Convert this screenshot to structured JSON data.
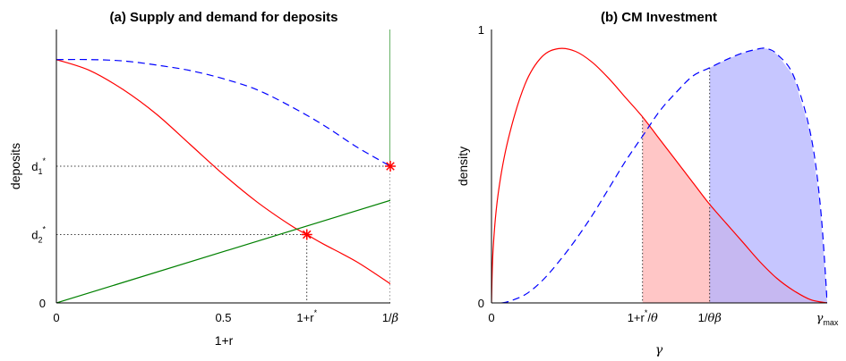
{
  "chart_data": [
    {
      "type": "line",
      "title": "(a) Supply and demand for deposits",
      "xlabel": "1+r",
      "ylabel": "deposits",
      "xlim": [
        0,
        1.0
      ],
      "ylim": [
        0,
        1.0
      ],
      "x_ticks": [
        {
          "x": 0,
          "label": "0"
        },
        {
          "x": 0.5,
          "label": "0.5"
        },
        {
          "x": 0.75,
          "label": "1+r",
          "sup": "*"
        },
        {
          "x": 1.0,
          "label": "1/",
          "greek": "β"
        }
      ],
      "y_ticks": [
        {
          "y": 0,
          "label": "0"
        },
        {
          "y": 0.25,
          "label": "d",
          "sub": "2",
          "sup": "*"
        },
        {
          "y": 0.5,
          "label": "d",
          "sub": "1",
          "sup": "*"
        }
      ],
      "series": [
        {
          "color": "#ff0000",
          "style": "solid",
          "x": [
            0,
            0.1,
            0.2,
            0.3,
            0.4,
            0.5,
            0.6,
            0.7,
            0.75,
            0.8,
            0.9,
            1.0
          ],
          "y": [
            0.89,
            0.85,
            0.78,
            0.69,
            0.58,
            0.47,
            0.37,
            0.285,
            0.25,
            0.215,
            0.15,
            0.07
          ]
        },
        {
          "color": "#0000ff",
          "style": "dashed",
          "x": [
            0,
            0.1,
            0.2,
            0.3,
            0.4,
            0.5,
            0.6,
            0.7,
            0.8,
            0.9,
            1.0
          ],
          "y": [
            0.89,
            0.89,
            0.885,
            0.87,
            0.85,
            0.82,
            0.78,
            0.72,
            0.65,
            0.57,
            0.5
          ]
        },
        {
          "color": "#008000",
          "style": "solid",
          "x": [
            0,
            1.0
          ],
          "y": [
            0,
            0.375
          ]
        },
        {
          "color": "#008000",
          "style": "solid",
          "x": [
            1.0,
            1.0
          ],
          "y": [
            0.5,
            1.0
          ]
        }
      ],
      "points": [
        {
          "x": 0.75,
          "y": 0.25,
          "marker": "*",
          "color": "#ff0000"
        },
        {
          "x": 1.0,
          "y": 0.5,
          "marker": "*",
          "color": "#ff0000"
        }
      ]
    },
    {
      "type": "area",
      "title": "(b) CM Investment",
      "xlabel": "γ",
      "ylabel": "density",
      "xlim": [
        0,
        1.0
      ],
      "ylim": [
        0,
        1.0
      ],
      "x_ticks": [
        {
          "x": 0,
          "label": "0"
        },
        {
          "x": 0.45,
          "label": "1+r",
          "sup": "*",
          "after": "/",
          "greek": "θ"
        },
        {
          "x": 0.65,
          "label": "1/",
          "greek": "θβ"
        },
        {
          "x": 1.0,
          "greek": "γ",
          "sub": "max"
        }
      ],
      "y_ticks": [
        {
          "y": 0,
          "label": "0"
        },
        {
          "y": 1,
          "label": "1"
        }
      ],
      "series": [
        {
          "color": "#ff0000",
          "style": "solid",
          "x": [
            0,
            0.005,
            0.02,
            0.05,
            0.1,
            0.15,
            0.2,
            0.25,
            0.3,
            0.35,
            0.4,
            0.45,
            0.5,
            0.55,
            0.6,
            0.65,
            0.7,
            0.75,
            0.8,
            0.85,
            0.9,
            0.95,
            1.0
          ],
          "y": [
            0,
            0.2,
            0.4,
            0.6,
            0.8,
            0.9,
            0.93,
            0.92,
            0.88,
            0.82,
            0.75,
            0.68,
            0.6,
            0.52,
            0.44,
            0.36,
            0.29,
            0.22,
            0.15,
            0.09,
            0.045,
            0.012,
            0
          ]
        },
        {
          "color": "#0000ff",
          "style": "dashed",
          "x": [
            0.03,
            0.05,
            0.1,
            0.15,
            0.2,
            0.25,
            0.3,
            0.35,
            0.4,
            0.45,
            0.5,
            0.55,
            0.6,
            0.65,
            0.7,
            0.75,
            0.8,
            0.82,
            0.85,
            0.9,
            0.95,
            0.98,
            1.0
          ],
          "y": [
            0,
            0.005,
            0.03,
            0.08,
            0.15,
            0.23,
            0.32,
            0.42,
            0.52,
            0.61,
            0.7,
            0.77,
            0.83,
            0.86,
            0.89,
            0.915,
            0.93,
            0.93,
            0.91,
            0.83,
            0.62,
            0.35,
            0
          ]
        }
      ],
      "shaded": [
        {
          "series": 0,
          "from": 0.45,
          "to": 1.0,
          "color": "#ffb3b3"
        },
        {
          "series": 1,
          "from": 0.65,
          "to": 1.0,
          "color": "#b3b3ff"
        }
      ],
      "guides": [
        {
          "x": 0.45,
          "y_to_series": 0
        },
        {
          "x": 0.65,
          "y_to_series": 1
        }
      ]
    }
  ]
}
